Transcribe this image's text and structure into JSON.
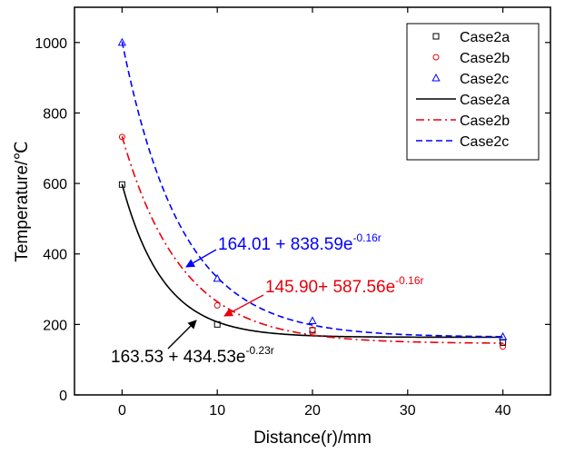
{
  "chart_data": {
    "type": "scatter",
    "xlabel": "Distance(r)/mm",
    "ylabel": "Temperature/℃",
    "xlim": [
      -5,
      45
    ],
    "ylim": [
      0,
      1100
    ],
    "x_ticks": [
      0,
      10,
      20,
      30,
      40
    ],
    "y_ticks": [
      0,
      200,
      400,
      600,
      800,
      1000
    ],
    "x_tick_labels": [
      "0",
      "10",
      "20",
      "30",
      "40"
    ],
    "y_tick_labels": [
      "0",
      "200",
      "400",
      "600",
      "800",
      "1000"
    ],
    "legend_position": "top-right",
    "series": [
      {
        "name": "Case2a",
        "kind": "points",
        "marker": "square",
        "color": "#000000",
        "x": [
          0,
          10,
          20,
          40
        ],
        "y": [
          597,
          200,
          183,
          148
        ]
      },
      {
        "name": "Case2b",
        "kind": "points",
        "marker": "circle",
        "color": "#e8000b",
        "x": [
          0,
          10,
          20,
          40
        ],
        "y": [
          732,
          254,
          185,
          137
        ]
      },
      {
        "name": "Case2c",
        "kind": "points",
        "marker": "triangle",
        "color": "#0000ff",
        "x": [
          0,
          10,
          20,
          40
        ],
        "y": [
          1000,
          330,
          210,
          165
        ]
      },
      {
        "name": "Case2a",
        "kind": "fit",
        "line_style": "solid",
        "color": "#000000",
        "a": 163.53,
        "b": 434.53,
        "k": 0.23
      },
      {
        "name": "Case2b",
        "kind": "fit",
        "line_style": "dashdot",
        "color": "#e8000b",
        "a": 145.9,
        "b": 587.56,
        "k": 0.16
      },
      {
        "name": "Case2c",
        "kind": "fit",
        "line_style": "dashed",
        "color": "#0000ff",
        "a": 164.01,
        "b": 838.59,
        "k": 0.16
      }
    ],
    "annotations": [
      {
        "base": "164.01 + 838.59e",
        "exponent": "-0.16r",
        "color": "#0000ff",
        "points_to_x": 8.2
      },
      {
        "base": "145.90+ 587.56e",
        "exponent": "-0.16r",
        "color": "#e8000b",
        "points_to_x": 11.2
      },
      {
        "base": "163.53 + 434.53e",
        "exponent": "-0.23r",
        "color": "#000000",
        "points_to_x": 9.5
      }
    ]
  }
}
